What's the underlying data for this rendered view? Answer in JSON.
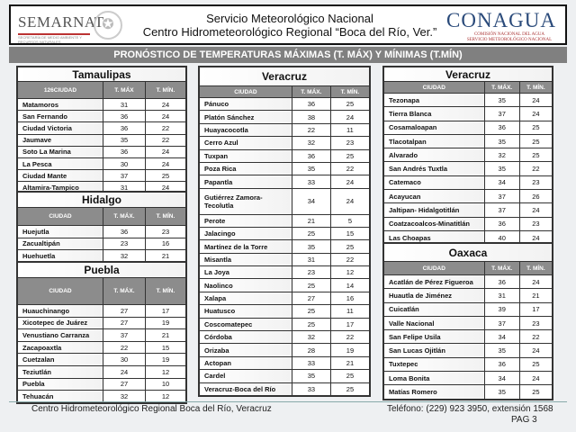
{
  "header": {
    "logo_left": "SEMARNAT",
    "logo_left_sub": "SECRETARÍA DE MEDIO AMBIENTE Y RECURSOS NATURALES",
    "title1": "Servicio Meteorológico Nacional",
    "title2": "Centro Hidrometeorológico Regional “Boca del Río, Ver.”",
    "logo_right": "CONAGUA",
    "logo_right_sub1": "COMISIÓN NACIONAL DEL AGUA",
    "logo_right_sub2": "SERVICIO METEOROLÓGICO NACIONAL"
  },
  "banner": "PRONÓSTICO DE TEMPERATURAS MÁXIMAS (T. MÁX) Y MÍNIMAS (T.MÍN)",
  "tables": [
    {
      "title": "Tamaulipas",
      "cols": [
        "126CIUDAD",
        "T. MÁX",
        "T. MÍN."
      ],
      "rows": [
        [
          "Matamoros",
          "31",
          "24"
        ],
        [
          "San Fernando",
          "36",
          "24"
        ],
        [
          "Ciudad Victoria",
          "36",
          "22"
        ],
        [
          "Jaumave",
          "35",
          "22"
        ],
        [
          "Soto La Marina",
          "36",
          "24"
        ],
        [
          "La Pesca",
          "30",
          "24"
        ],
        [
          "Ciudad Mante",
          "37",
          "25"
        ],
        [
          "Altamira-Tampico",
          "31",
          "24"
        ]
      ]
    },
    {
      "title": "Hidalgo",
      "cols": [
        "CIUDAD",
        "T. MÁX.",
        "T. MÍN."
      ],
      "rows": [
        [
          "Huejutla",
          "36",
          "23"
        ],
        [
          "Zacualtipán",
          "23",
          "16"
        ],
        [
          "Huehuetla",
          "32",
          "21"
        ]
      ]
    },
    {
      "title": "Puebla",
      "cols": [
        "CIUDAD",
        "T. MÁX.",
        "T. MÍN."
      ],
      "rows": [
        [
          "Huauchinango",
          "27",
          "17"
        ],
        [
          "Xicotepec de Juárez",
          "27",
          "19"
        ],
        [
          "Venustiano Carranza",
          "37",
          "21"
        ],
        [
          "Zacapoaxtla",
          "22",
          "15"
        ],
        [
          "Cuetzalan",
          "30",
          "19"
        ],
        [
          "Teziutlán",
          "24",
          "12"
        ],
        [
          "Puebla",
          "27",
          "10"
        ],
        [
          "Tehuacán",
          "32",
          "12"
        ]
      ]
    },
    {
      "title": "Veracruz",
      "cols": [
        "CIUDAD",
        "T. MÁX.",
        "T. MÍN."
      ],
      "rows": [
        [
          "Pánuco",
          "36",
          "25"
        ],
        [
          "Platón Sánchez",
          "38",
          "24"
        ],
        [
          "Huayacocotla",
          "22",
          "11"
        ],
        [
          "Cerro Azul",
          "32",
          "23"
        ],
        [
          "Tuxpan",
          "36",
          "25"
        ],
        [
          "Poza Rica",
          "35",
          "22"
        ],
        [
          "Papantla",
          "33",
          "24"
        ],
        [
          "Gutiérrez Zamora-Tecolutla",
          "34",
          "24"
        ],
        [
          "Perote",
          "21",
          "5"
        ],
        [
          "Jalacingo",
          "25",
          "15"
        ],
        [
          "Martínez de la Torre",
          "35",
          "25"
        ],
        [
          "Misantla",
          "31",
          "22"
        ],
        [
          "La Joya",
          "23",
          "12"
        ],
        [
          "Naolinco",
          "25",
          "14"
        ],
        [
          "Xalapa",
          "27",
          "16"
        ],
        [
          "Huatusco",
          "25",
          "11"
        ],
        [
          "Coscomatepec",
          "25",
          "17"
        ],
        [
          "Córdoba",
          "32",
          "22"
        ],
        [
          "Orizaba",
          "28",
          "19"
        ],
        [
          "Actopan",
          "33",
          "21"
        ],
        [
          "Cardel",
          "35",
          "25"
        ],
        [
          "Veracruz-Boca del Río",
          "33",
          "25"
        ]
      ]
    },
    {
      "title": "Veracruz",
      "cols": [
        "CIUDAD",
        "T. MÁX.",
        "T. MÍN."
      ],
      "rows": [
        [
          "Tezonapa",
          "35",
          "24"
        ],
        [
          "Tierra Blanca",
          "37",
          "24"
        ],
        [
          "Cosamaloapan",
          "36",
          "25"
        ],
        [
          "Tlacotalpan",
          "35",
          "25"
        ],
        [
          "Alvarado",
          "32",
          "25"
        ],
        [
          "San Andrés Tuxtla",
          "35",
          "22"
        ],
        [
          "Catemaco",
          "34",
          "23"
        ],
        [
          "Acayucan",
          "37",
          "26"
        ],
        [
          "Jaltipan- Hidalgotitlán",
          "37",
          "24"
        ],
        [
          "Coatzacoalcos-Minatitlán",
          "36",
          "23"
        ],
        [
          "Las Choapas",
          "40",
          "24"
        ]
      ]
    },
    {
      "title": "Oaxaca",
      "cols": [
        "CIUDAD",
        "T. MÁX.",
        "T. MÍN."
      ],
      "rows": [
        [
          "Acatlán de Pérez Figueroa",
          "36",
          "24"
        ],
        [
          "Huautla de Jiménez",
          "31",
          "21"
        ],
        [
          "Cuicatlán",
          "39",
          "17"
        ],
        [
          "Valle Nacional",
          "37",
          "23"
        ],
        [
          "San Felipe Usila",
          "34",
          "22"
        ],
        [
          "San Lucas Ojitlán",
          "35",
          "24"
        ],
        [
          "Tuxtepec",
          "36",
          "25"
        ],
        [
          "Loma Bonita",
          "34",
          "24"
        ],
        [
          "Matías Romero",
          "35",
          "25"
        ]
      ]
    }
  ],
  "footer": {
    "left": "Centro Hidrometeorológico Regional Boca del Río, Veracruz",
    "right": "Teléfono: (229) 923 3950, extensión 1568",
    "page": "PAG 3"
  }
}
